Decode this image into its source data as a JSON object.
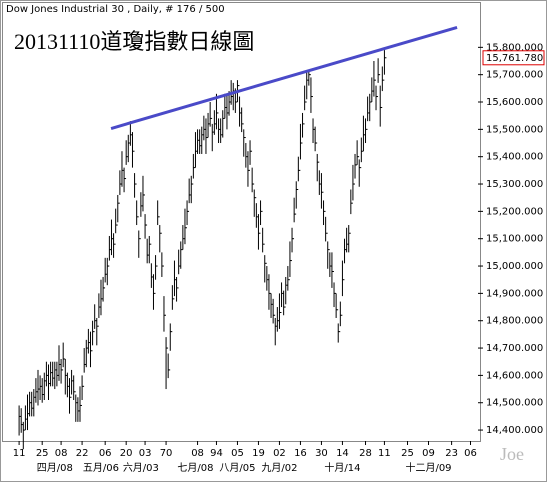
{
  "chart_data": {
    "type": "ohlc",
    "header": "Dow Jones Industrial 30 , Daily, # 176 / 500",
    "title": "20131110道瓊指數日線圖",
    "watermark": "Joe",
    "color": "#000000",
    "xlim": [
      -1,
      220
    ],
    "ylim": [
      14360,
      15900
    ],
    "xticks": [
      {
        "value": 0,
        "label": "11"
      },
      {
        "value": 11,
        "label": "25"
      },
      {
        "value": 20,
        "label": "08"
      },
      {
        "value": 30,
        "label": "22"
      },
      {
        "value": 41,
        "label": "06"
      },
      {
        "value": 51,
        "label": "20"
      },
      {
        "value": 60,
        "label": "03"
      },
      70,
      {
        "value": 85,
        "label": "08"
      },
      94,
      {
        "value": 104,
        "label": "05"
      },
      {
        "value": 114,
        "label": "19"
      },
      {
        "value": 124,
        "label": "02"
      },
      {
        "value": 134,
        "label": "16"
      },
      {
        "value": 144,
        "label": "30"
      },
      {
        "value": 154,
        "label": "14"
      },
      {
        "value": 165,
        "label": "28"
      },
      {
        "value": 174,
        "label": "11"
      },
      {
        "value": 185,
        "label": "25"
      },
      {
        "value": 195,
        "label": "09"
      },
      {
        "value": 206,
        "label": "23"
      },
      {
        "value": 215,
        "label": "06"
      }
    ],
    "month_ticks": [
      {
        "value": 17,
        "label": "四月/08"
      },
      {
        "value": 39,
        "label": "五月/06"
      },
      {
        "value": 58,
        "label": "六月/03"
      },
      {
        "value": 84,
        "label": "七月/08"
      },
      {
        "value": 104,
        "label": "八月/05"
      },
      {
        "value": 124,
        "label": "九月/02"
      },
      {
        "value": 154,
        "label": "十月/14"
      },
      {
        "value": 195,
        "label": "十二月/09"
      }
    ],
    "yticks": [
      {
        "value": 14400,
        "label": "14,400.000"
      },
      {
        "value": 14500,
        "label": "14,500.000"
      },
      {
        "value": 14600,
        "label": "14,600.000"
      },
      {
        "value": 14700,
        "label": "14,700.000"
      },
      {
        "value": 14800,
        "label": "14,800.000"
      },
      {
        "value": 14900,
        "label": "14,900.000"
      },
      {
        "value": 15000,
        "label": "15,000.000"
      },
      {
        "value": 15100,
        "label": "15,100.000"
      },
      {
        "value": 15200,
        "label": "15,200.000"
      },
      {
        "value": 15300,
        "label": "15,300.000"
      },
      {
        "value": 15400,
        "label": "15,400.000"
      },
      {
        "value": 15500,
        "label": "15,500.000"
      },
      {
        "value": 15600,
        "label": "15,600.000"
      },
      {
        "value": 15700,
        "label": "15,700.000"
      },
      {
        "value": 15800,
        "label": "15,800.000"
      }
    ],
    "last_value": {
      "value": 15761.78,
      "label": "15,761.780"
    },
    "trendline": {
      "color": "#4a4ac8",
      "x": [
        43.8,
        208.6
      ],
      "y": [
        15503,
        15873
      ]
    },
    "high": [
      14490,
      14480,
      14430,
      14490,
      14530,
      14540,
      14540,
      14550,
      14590,
      14620,
      14600,
      14590,
      14610,
      14650,
      14640,
      14650,
      14650,
      14650,
      14650,
      14710,
      14660,
      14720,
      14660,
      14610,
      14590,
      14620,
      14600,
      14530,
      14520,
      14560,
      14600,
      14700,
      14730,
      14770,
      14760,
      14800,
      14860,
      14810,
      14900,
      14950,
      14960,
      15030,
      15030,
      15110,
      15170,
      15120,
      15210,
      15260,
      15350,
      15420,
      15360,
      15460,
      15480,
      15530,
      15490,
      15340,
      15240,
      15130,
      15270,
      15330,
      15190,
      15100,
      15110,
      15010,
      14970,
      15040,
      15240,
      15150,
      15050,
      14890,
      14740,
      14680,
      14790,
      14930,
      15020,
      14960,
      15060,
      15090,
      15150,
      15210,
      15240,
      15320,
      15330,
      15410,
      15490,
      15500,
      15500,
      15510,
      15550,
      15540,
      15560,
      15600,
      15520,
      15570,
      15630,
      15540,
      15540,
      15570,
      15630,
      15630,
      15640,
      15680,
      15670,
      15650,
      15680,
      15620,
      15580,
      15500,
      15450,
      15420,
      15460,
      15360,
      15280,
      15230,
      15190,
      15240,
      15140,
      15040,
      15000,
      14970,
      14900,
      14880,
      14810,
      14850,
      14900,
      14940,
      14910,
      14960,
      15000,
      15090,
      15140,
      15250,
      15310,
      15400,
      15520,
      15560,
      15660,
      15710,
      15710,
      15690,
      15540,
      15510,
      15410,
      15350,
      15340,
      15240,
      15180,
      15090,
      15050,
      15050,
      14940,
      14900,
      14790,
      14870,
      15020,
      15100,
      15140,
      15150,
      15280,
      15370,
      15410,
      15460,
      15390,
      15470,
      15550,
      15540,
      15620,
      15630,
      15690,
      15750,
      15660,
      15760,
      15660,
      15730,
      15790
    ],
    "low": [
      14380,
      14390,
      14330,
      14400,
      14400,
      14450,
      14450,
      14450,
      14500,
      14490,
      14510,
      14500,
      14510,
      14560,
      14510,
      14560,
      14560,
      14550,
      14560,
      14580,
      14570,
      14630,
      14530,
      14520,
      14460,
      14530,
      14510,
      14430,
      14430,
      14430,
      14510,
      14610,
      14630,
      14680,
      14630,
      14710,
      14770,
      14710,
      14810,
      14820,
      14870,
      14940,
      14930,
      15020,
      15040,
      15030,
      15120,
      15160,
      15260,
      15290,
      15270,
      15370,
      15380,
      15440,
      15360,
      15250,
      15150,
      15030,
      15180,
      15200,
      15100,
      15010,
      15010,
      14920,
      14840,
      14950,
      15150,
      15050,
      14960,
      14760,
      14550,
      14590,
      14690,
      14840,
      14890,
      14870,
      14970,
      14990,
      15060,
      15080,
      15150,
      15230,
      15230,
      15320,
      15360,
      15410,
      15410,
      15410,
      15460,
      15410,
      15470,
      15510,
      15420,
      15480,
      15500,
      15450,
      15450,
      15470,
      15540,
      15500,
      15550,
      15590,
      15570,
      15560,
      15600,
      15510,
      15490,
      15400,
      15360,
      15290,
      15370,
      15270,
      15180,
      15140,
      15060,
      15150,
      15050,
      14940,
      14910,
      14840,
      14810,
      14790,
      14710,
      14760,
      14770,
      14850,
      14820,
      14860,
      14910,
      14960,
      15050,
      15160,
      15210,
      15310,
      15390,
      15470,
      15570,
      15610,
      15660,
      15560,
      15450,
      15420,
      15310,
      15260,
      15210,
      15150,
      15090,
      14990,
      14960,
      14920,
      14850,
      14810,
      14720,
      14780,
      14890,
      15010,
      15050,
      15050,
      15190,
      15240,
      15320,
      15370,
      15290,
      15380,
      15420,
      15450,
      15530,
      15530,
      15600,
      15620,
      15570,
      15670,
      15510,
      15640,
      15700
    ],
    "close": [
      14450,
      14420,
      14400,
      14440,
      14460,
      14500,
      14480,
      14520,
      14540,
      14550,
      14560,
      14530,
      14580,
      14600,
      14570,
      14610,
      14590,
      14620,
      14600,
      14640,
      14620,
      14660,
      14600,
      14560,
      14520,
      14580,
      14540,
      14500,
      14470,
      14490,
      14560,
      14640,
      14700,
      14720,
      14690,
      14760,
      14800,
      14780,
      14850,
      14880,
      14920,
      14970,
      15000,
      15060,
      15100,
      15080,
      15150,
      15230,
      15300,
      15350,
      15320,
      15400,
      15450,
      15480,
      15420,
      15300,
      15180,
      15100,
      15220,
      15260,
      15150,
      15040,
      15080,
      14960,
      14900,
      15000,
      15180,
      15120,
      15000,
      14820,
      14700,
      14620,
      14760,
      14880,
      14950,
      14920,
      15000,
      15060,
      15100,
      15140,
      15200,
      15260,
      15300,
      15360,
      15420,
      15460,
      15440,
      15480,
      15500,
      15470,
      15520,
      15540,
      15490,
      15520,
      15560,
      15500,
      15480,
      15540,
      15580,
      15560,
      15600,
      15620,
      15640,
      15600,
      15660,
      15560,
      15520,
      15470,
      15400,
      15350,
      15420,
      15300,
      15250,
      15180,
      15120,
      15200,
      15080,
      15010,
      14950,
      14900,
      14860,
      14820,
      14780,
      14800,
      14830,
      14900,
      14850,
      14930,
      14950,
      15020,
      15100,
      15190,
      15280,
      15350,
      15450,
      15520,
      15600,
      15680,
      15700,
      15620,
      15500,
      15450,
      15380,
      15300,
      15270,
      15200,
      15120,
      15060,
      15000,
      14980,
      14900,
      14840,
      14760,
      14820,
      14950,
      15060,
      15080,
      15120,
      15230,
      15300,
      15370,
      15400,
      15360,
      15420,
      15480,
      15500,
      15560,
      15600,
      15640,
      15680,
      15620,
      15700,
      15580,
      15680,
      15761.78
    ]
  }
}
